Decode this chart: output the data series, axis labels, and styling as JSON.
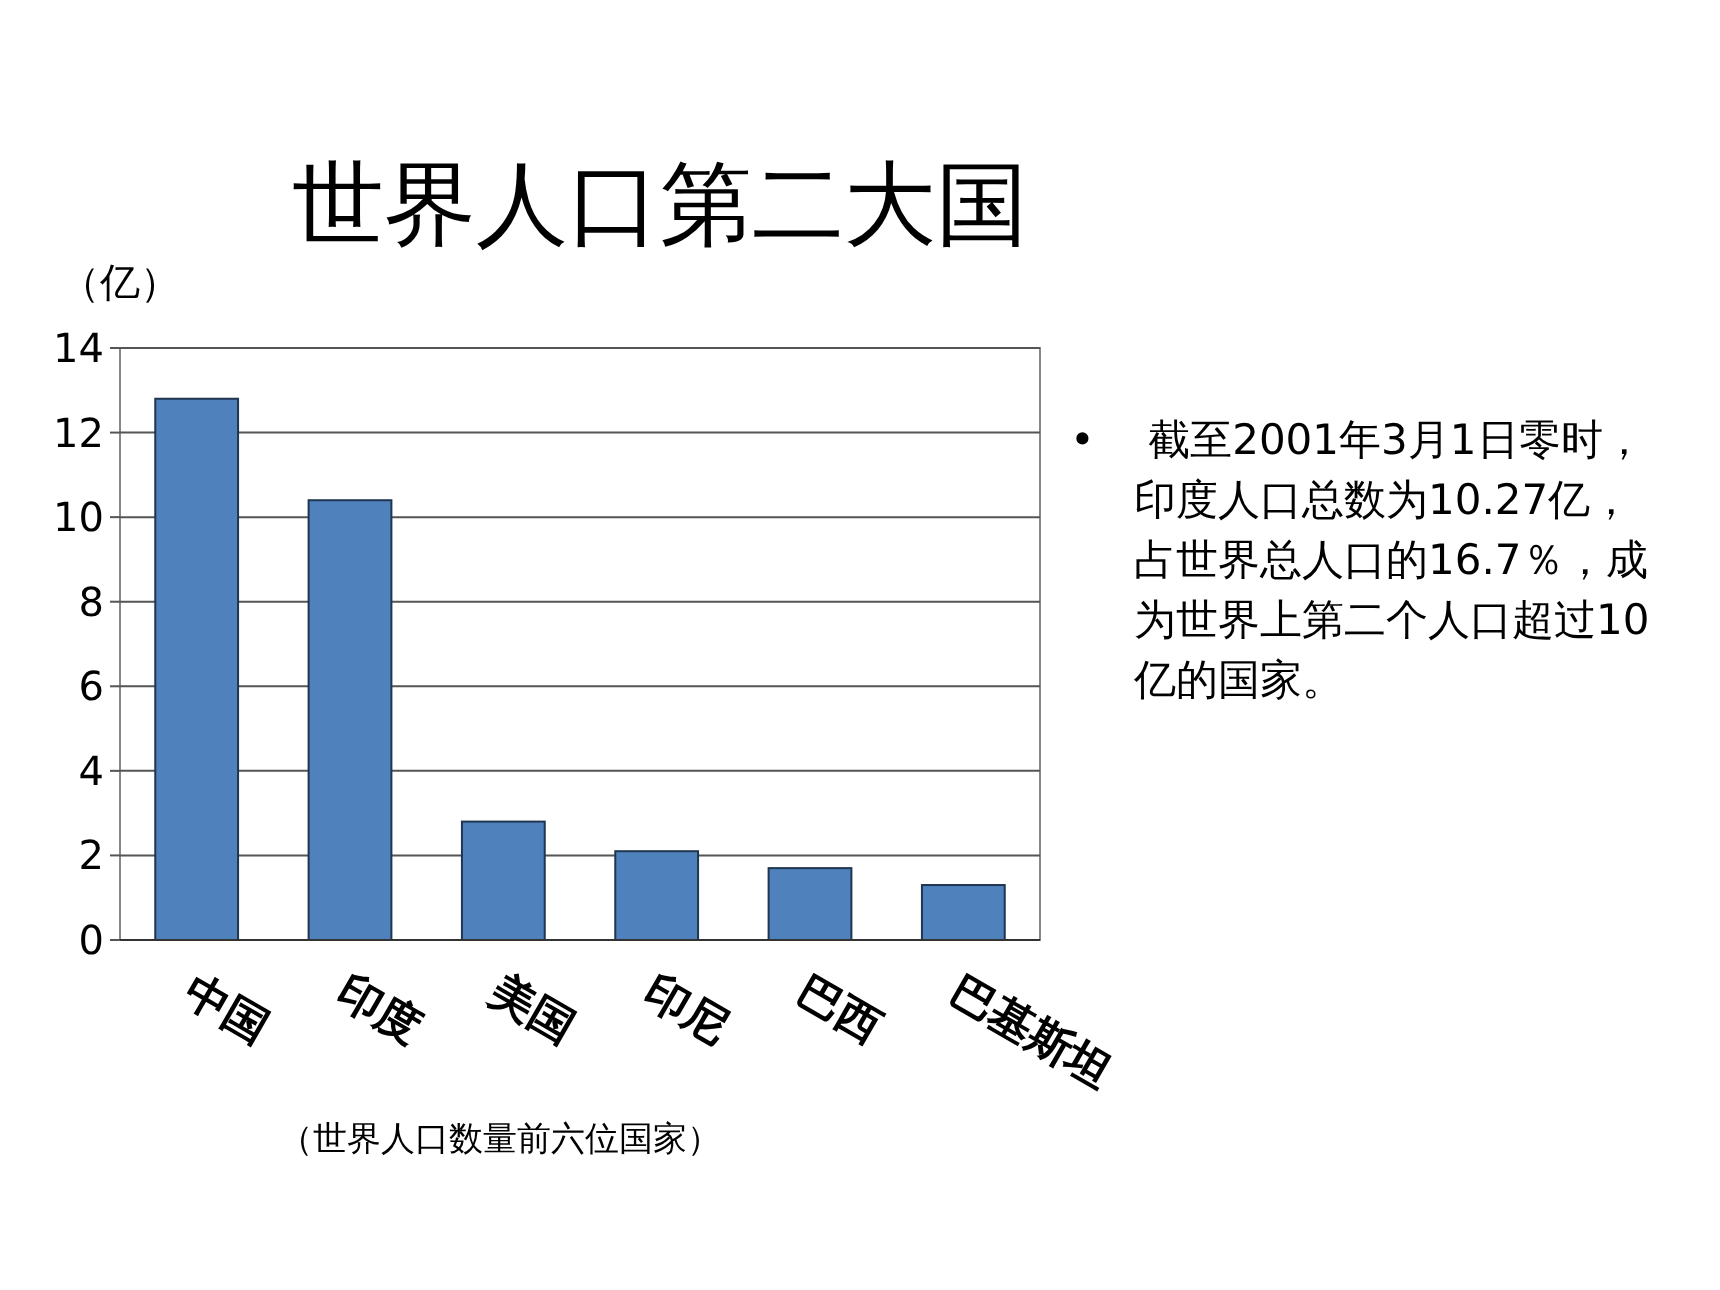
{
  "chart_data": {
    "type": "bar",
    "title": "世界人口第二大国",
    "ylabel": "（亿）",
    "categories": [
      "中国",
      "印度",
      "美国",
      "印尼",
      "巴西",
      "巴基斯坦"
    ],
    "values": [
      12.8,
      10.4,
      2.8,
      2.1,
      1.7,
      1.3
    ],
    "color": "#4f81bd",
    "ylim": [
      0,
      14
    ],
    "yticks": [
      0,
      2,
      4,
      6,
      8,
      10,
      12,
      14
    ],
    "grid": "y",
    "annotations": [
      "• 截至2001年3月1日零时，印度人口总数为10.27亿，占世界总人口的16.7％，成为世界上第二个人口超过10亿的国家。",
      "（世界人口数量前六位国家）"
    ]
  }
}
